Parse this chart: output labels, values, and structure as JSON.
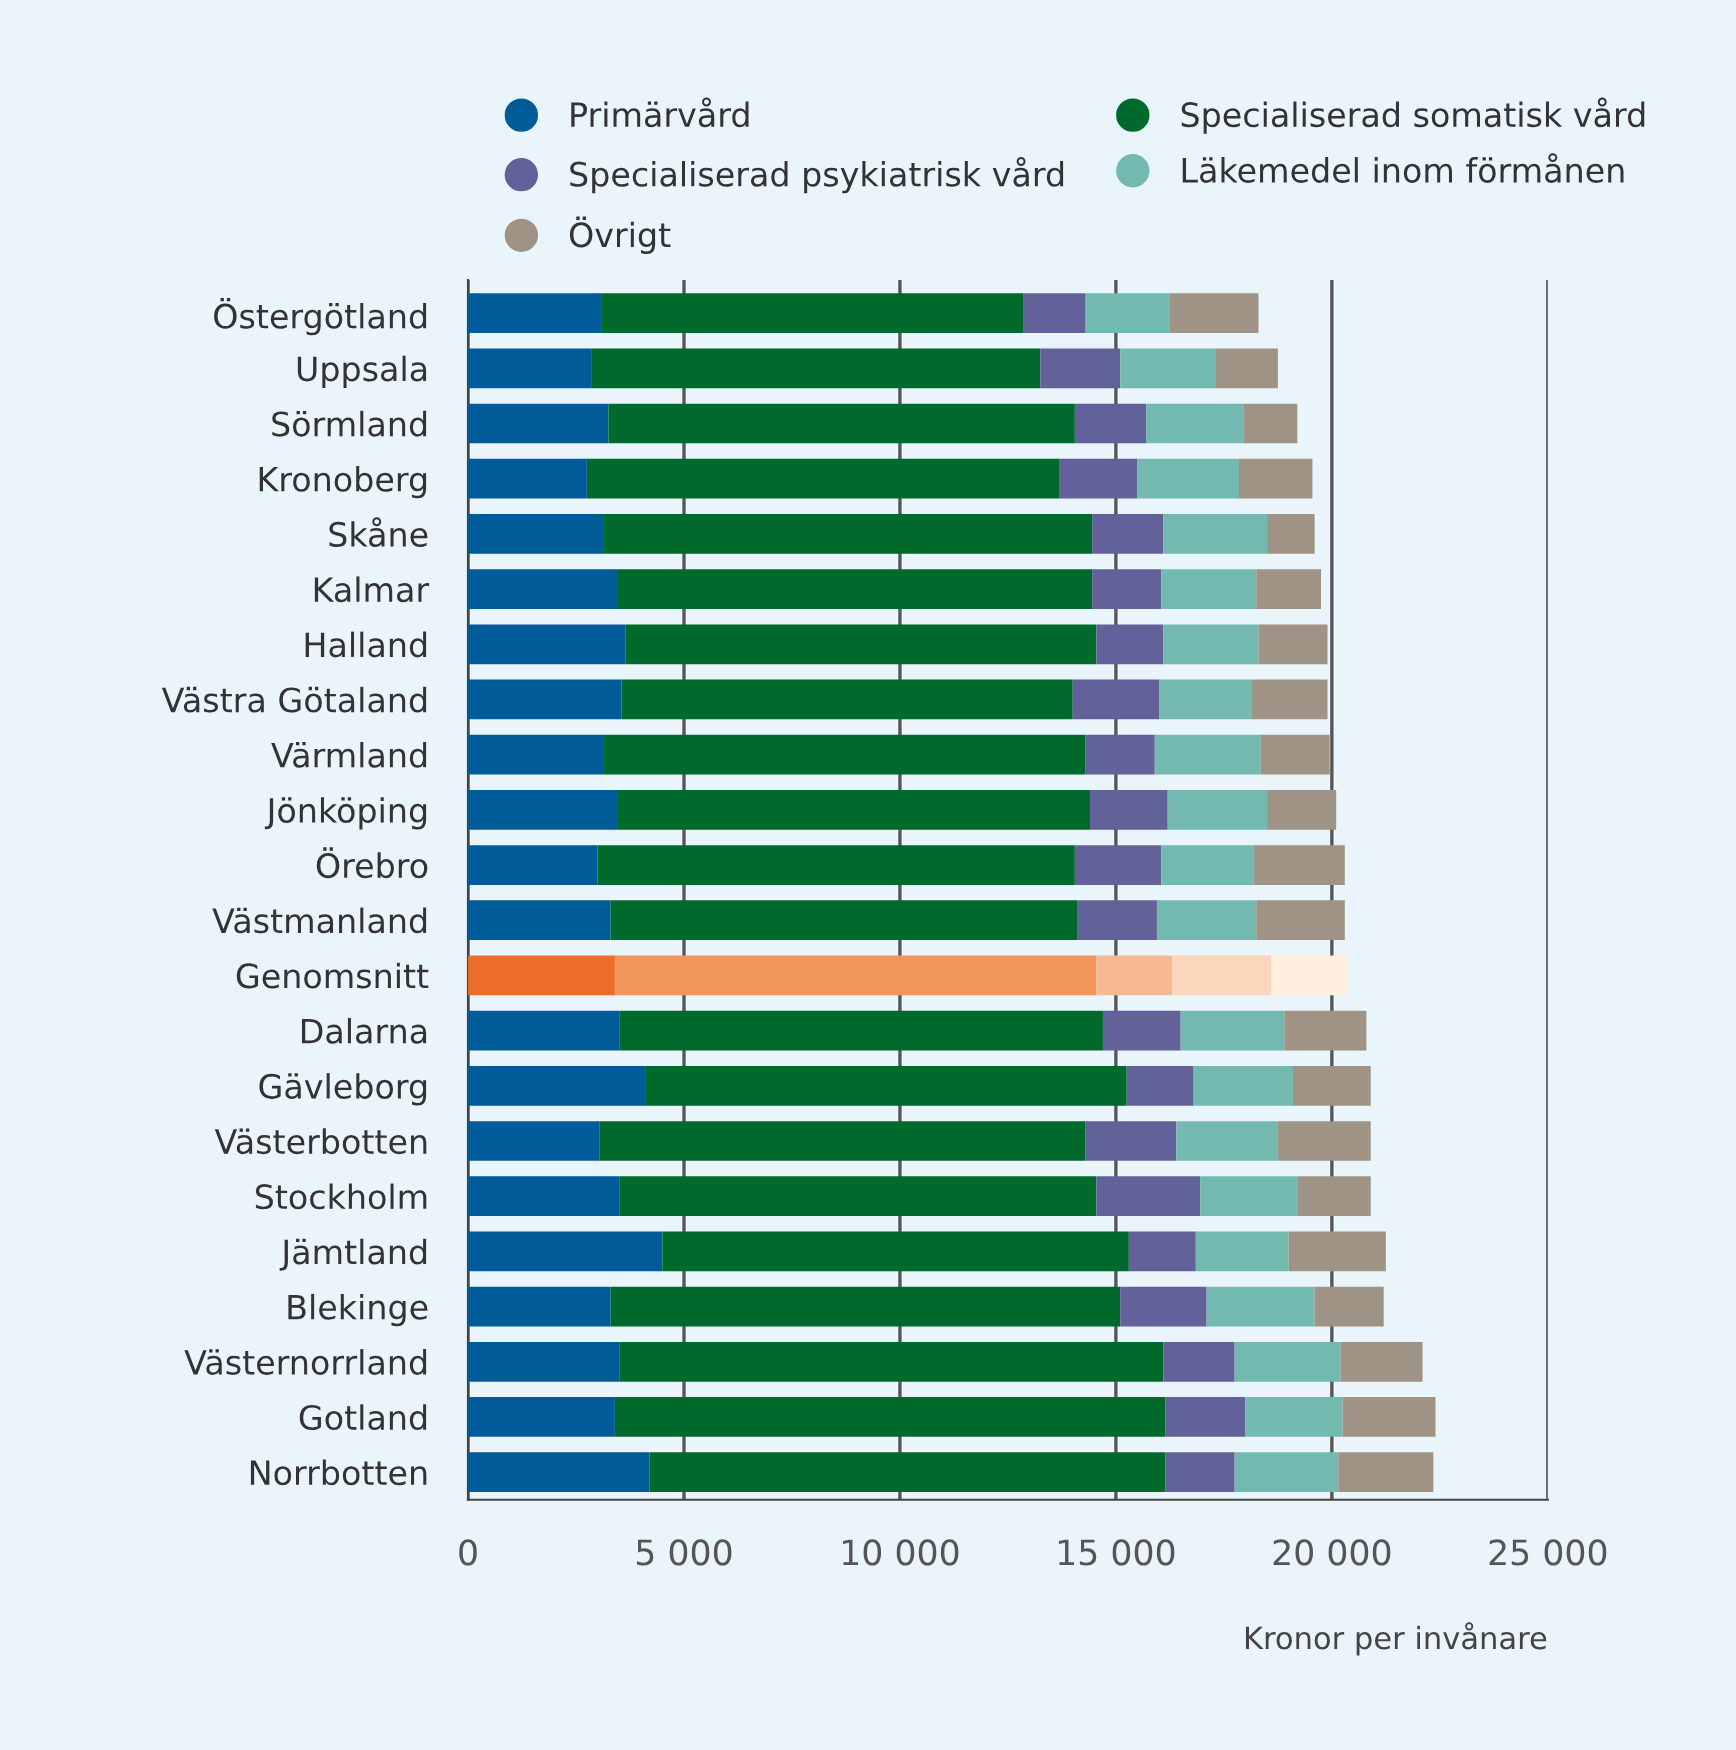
{
  "chart_data": {
    "type": "bar",
    "orientation": "horizontal",
    "stacked": true,
    "xlabel": "Kronor per invånare",
    "categories": [
      "Östergötland",
      "Uppsala",
      "Sörmland",
      "Kronoberg",
      "Skåne",
      "Kalmar",
      "Halland",
      "Västra Götaland",
      "Värmland",
      "Jönköping",
      "Örebro",
      "Västmanland",
      "Genomsnitt",
      "Dalarna",
      "Gävleborg",
      "Västerbotten",
      "Stockholm",
      "Jämtland",
      "Blekinge",
      "Västernorrland",
      "Gotland",
      "Norrbotten"
    ],
    "series": [
      {
        "name": "Primärvård",
        "color": "#005b99",
        "colors": [
          "#005b99",
          "#005b99",
          "#005b99",
          "#005b99",
          "#005b99",
          "#005b99",
          "#005b99",
          "#005b99",
          "#005b99",
          "#005b99",
          "#005b99",
          "#005b99",
          "#ec6c2a",
          "#005b99",
          "#005b99",
          "#005b99",
          "#005b99",
          "#005b99",
          "#005b99",
          "#005b99",
          "#005b99",
          "#005b99"
        ],
        "values": [
          3100,
          2850,
          3250,
          2750,
          3150,
          3450,
          3650,
          3550,
          3150,
          3450,
          3000,
          3300,
          3400,
          3500,
          4100,
          3050,
          3500,
          4500,
          3300,
          3500,
          3400,
          4200
        ]
      },
      {
        "name": "Specialiserad somatisk vård",
        "color": "#006a2d",
        "colors": [
          "#006a2d",
          "#006a2d",
          "#006a2d",
          "#006a2d",
          "#006a2d",
          "#006a2d",
          "#006a2d",
          "#006a2d",
          "#006a2d",
          "#006a2d",
          "#006a2d",
          "#006a2d",
          "#f2955c",
          "#006a2d",
          "#006a2d",
          "#006a2d",
          "#006a2d",
          "#006a2d",
          "#006a2d",
          "#006a2d",
          "#006a2d",
          "#006a2d"
        ],
        "values": [
          9750,
          10400,
          10800,
          10950,
          11300,
          11000,
          10900,
          10450,
          11150,
          10950,
          11050,
          10800,
          11150,
          11200,
          11150,
          11250,
          11050,
          10800,
          11800,
          12600,
          12750,
          11950
        ]
      },
      {
        "name": "Specialiserad psykiatrisk vård",
        "color": "#636199",
        "colors": [
          "#636199",
          "#636199",
          "#636199",
          "#636199",
          "#636199",
          "#636199",
          "#636199",
          "#636199",
          "#636199",
          "#636199",
          "#636199",
          "#636199",
          "#f7b992",
          "#636199",
          "#636199",
          "#636199",
          "#636199",
          "#636199",
          "#636199",
          "#636199",
          "#636199",
          "#636199"
        ],
        "values": [
          1450,
          1850,
          1650,
          1800,
          1650,
          1600,
          1550,
          2000,
          1600,
          1800,
          2000,
          1850,
          1750,
          1800,
          1550,
          2100,
          2400,
          1550,
          2000,
          1650,
          1850,
          1600
        ]
      },
      {
        "name": "Läkemedel inom förmånen",
        "color": "#74b9b0",
        "colors": [
          "#74b9b0",
          "#74b9b0",
          "#74b9b0",
          "#74b9b0",
          "#74b9b0",
          "#74b9b0",
          "#74b9b0",
          "#74b9b0",
          "#74b9b0",
          "#74b9b0",
          "#74b9b0",
          "#74b9b0",
          "#fad7bc",
          "#74b9b0",
          "#74b9b0",
          "#74b9b0",
          "#74b9b0",
          "#74b9b0",
          "#74b9b0",
          "#74b9b0",
          "#74b9b0",
          "#74b9b0"
        ],
        "values": [
          1950,
          2200,
          2250,
          2350,
          2400,
          2200,
          2200,
          2150,
          2450,
          2300,
          2150,
          2300,
          2300,
          2400,
          2300,
          2350,
          2250,
          2150,
          2500,
          2450,
          2250,
          2400
        ]
      },
      {
        "name": "Övrigt",
        "color": "#9e9385",
        "colors": [
          "#9e9385",
          "#9e9385",
          "#9e9385",
          "#9e9385",
          "#9e9385",
          "#9e9385",
          "#9e9385",
          "#9e9385",
          "#9e9385",
          "#9e9385",
          "#9e9385",
          "#9e9385",
          "#fdeee0",
          "#9e9385",
          "#9e9385",
          "#9e9385",
          "#9e9385",
          "#9e9385",
          "#9e9385",
          "#9e9385",
          "#9e9385",
          "#9e9385"
        ],
        "values": [
          2050,
          1450,
          1250,
          1700,
          1100,
          1500,
          1600,
          1750,
          1600,
          1600,
          2100,
          2050,
          1750,
          1900,
          1800,
          2150,
          1700,
          2250,
          1600,
          1900,
          2150,
          2200
        ]
      }
    ],
    "xlim": [
      0,
      25000
    ],
    "xticks": [
      0,
      {
        "value": 5000,
        "label": "5 000"
      },
      {
        "value": 10000,
        "label": "10 000"
      },
      {
        "value": 15000,
        "label": "15 000"
      },
      {
        "value": 20000,
        "label": "20 000"
      },
      {
        "value": 25000,
        "label": "25 000"
      }
    ],
    "grid": "x",
    "legend": "top"
  }
}
